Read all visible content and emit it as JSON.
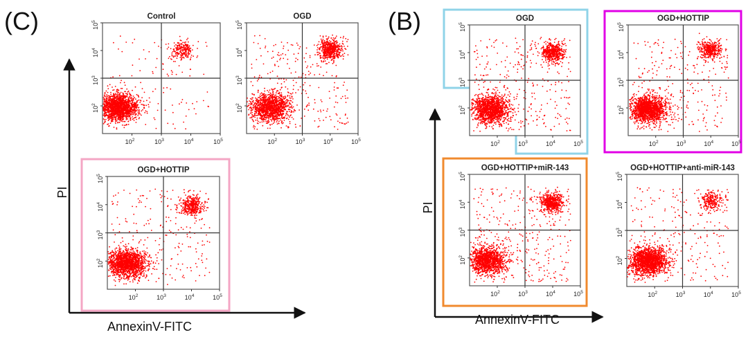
{
  "panels": [
    {
      "letter": "(C)",
      "xlabel": "AnnexinV-FITC",
      "ylabel": "PI"
    },
    {
      "letter": "(B)",
      "xlabel": "AnnexinV-FITC",
      "ylabel": "PI"
    }
  ],
  "colors": {
    "dots": "#ff0000",
    "highlight_pink": "#f4a6c4",
    "highlight_cyan": "#8fd3e8",
    "highlight_magenta": "#e100e6",
    "highlight_orange": "#f08a2e"
  },
  "chart_data": [
    {
      "type": "scatter",
      "panel": "(C)",
      "title": "Control",
      "xlabel": "AnnexinV-FITC",
      "ylabel": "PI",
      "axis_scale": "log",
      "xlim": [
        10,
        100000
      ],
      "ylim": [
        10,
        100000
      ],
      "x_ticks": [
        "10^2",
        "10^3",
        "10^4",
        "10^5"
      ],
      "y_ticks": [
        "10^2",
        "10^3",
        "10^4",
        "10^5"
      ],
      "quadrant_gates": {
        "x": 1000,
        "y": 1000
      },
      "populations": [
        {
          "region": "live",
          "log_center": [
            1.55,
            1.95
          ],
          "weight": 0.85
        },
        {
          "region": "late-apoptotic",
          "log_center": [
            3.7,
            4.0
          ],
          "weight": 0.1
        },
        {
          "region": "scattered",
          "weight": 0.05
        }
      ]
    },
    {
      "type": "scatter",
      "panel": "(C)",
      "title": "OGD",
      "xlabel": "AnnexinV-FITC",
      "ylabel": "PI",
      "axis_scale": "log",
      "xlim": [
        10,
        100000
      ],
      "ylim": [
        10,
        100000
      ],
      "x_ticks": [
        "10^2",
        "10^3",
        "10^4",
        "10^5"
      ],
      "y_ticks": [
        "10^2",
        "10^3",
        "10^4",
        "10^5"
      ],
      "quadrant_gates": {
        "x": 1000,
        "y": 1000
      },
      "populations": [
        {
          "region": "live",
          "log_center": [
            1.85,
            1.95
          ],
          "weight": 0.62
        },
        {
          "region": "late-apoptotic",
          "log_center": [
            4.0,
            4.05
          ],
          "weight": 0.25
        },
        {
          "region": "scattered",
          "weight": 0.13
        }
      ]
    },
    {
      "type": "scatter",
      "panel": "(C)",
      "title": "OGD+HOTTIP",
      "xlabel": "AnnexinV-FITC",
      "ylabel": "PI",
      "axis_scale": "log",
      "xlim": [
        10,
        100000
      ],
      "ylim": [
        10,
        100000
      ],
      "x_ticks": [
        "10^2",
        "10^3",
        "10^4",
        "10^5"
      ],
      "y_ticks": [
        "10^2",
        "10^3",
        "10^4",
        "10^5"
      ],
      "quadrant_gates": {
        "x": 1000,
        "y": 1000
      },
      "populations": [
        {
          "region": "live",
          "log_center": [
            1.7,
            1.9
          ],
          "weight": 0.72
        },
        {
          "region": "late-apoptotic",
          "log_center": [
            4.0,
            3.95
          ],
          "weight": 0.17
        },
        {
          "region": "scattered",
          "weight": 0.11
        }
      ]
    },
    {
      "type": "scatter",
      "panel": "(B)",
      "title": "OGD",
      "xlabel": "AnnexinV-FITC",
      "ylabel": "PI",
      "axis_scale": "log",
      "xlim": [
        10,
        100000
      ],
      "ylim": [
        10,
        100000
      ],
      "x_ticks": [
        "10^2",
        "10^3",
        "10^4",
        "10^5"
      ],
      "y_ticks": [
        "10^2",
        "10^3",
        "10^4",
        "10^5"
      ],
      "quadrant_gates": {
        "x": 1000,
        "y": 1000
      },
      "populations": [
        {
          "region": "live",
          "log_center": [
            1.75,
            1.95
          ],
          "weight": 0.62
        },
        {
          "region": "late-apoptotic",
          "log_center": [
            4.0,
            4.0
          ],
          "weight": 0.24
        },
        {
          "region": "scattered",
          "weight": 0.14
        }
      ]
    },
    {
      "type": "scatter",
      "panel": "(B)",
      "title": "OGD+HOTTIP",
      "xlabel": "AnnexinV-FITC",
      "ylabel": "PI",
      "axis_scale": "log",
      "xlim": [
        10,
        100000
      ],
      "ylim": [
        10,
        100000
      ],
      "x_ticks": [
        "10^2",
        "10^3",
        "10^4",
        "10^5"
      ],
      "y_ticks": [
        "10^2",
        "10^3",
        "10^4",
        "10^5"
      ],
      "quadrant_gates": {
        "x": 1000,
        "y": 1000
      },
      "populations": [
        {
          "region": "live",
          "log_center": [
            1.7,
            1.95
          ],
          "weight": 0.7
        },
        {
          "region": "late-apoptotic",
          "log_center": [
            4.0,
            4.1
          ],
          "weight": 0.18
        },
        {
          "region": "scattered",
          "weight": 0.12
        }
      ]
    },
    {
      "type": "scatter",
      "panel": "(B)",
      "title": "OGD+HOTTIP+miR-143",
      "xlabel": "AnnexinV-FITC",
      "ylabel": "PI",
      "axis_scale": "log",
      "xlim": [
        10,
        100000
      ],
      "ylim": [
        10,
        100000
      ],
      "x_ticks": [
        "10^2",
        "10^3",
        "10^4",
        "10^5"
      ],
      "y_ticks": [
        "10^2",
        "10^3",
        "10^4",
        "10^5"
      ],
      "quadrant_gates": {
        "x": 1000,
        "y": 1000
      },
      "populations": [
        {
          "region": "live",
          "log_center": [
            1.65,
            1.9
          ],
          "weight": 0.6
        },
        {
          "region": "late-apoptotic",
          "log_center": [
            3.95,
            4.0
          ],
          "weight": 0.25
        },
        {
          "region": "scattered",
          "weight": 0.15
        }
      ]
    },
    {
      "type": "scatter",
      "panel": "(B)",
      "title": "OGD+HOTTIP+anti-miR-143",
      "xlabel": "AnnexinV-FITC",
      "ylabel": "PI",
      "axis_scale": "log",
      "xlim": [
        10,
        100000
      ],
      "ylim": [
        10,
        100000
      ],
      "x_ticks": [
        "10^2",
        "10^3",
        "10^4",
        "10^5"
      ],
      "y_ticks": [
        "10^2",
        "10^3",
        "10^4",
        "10^5"
      ],
      "quadrant_gates": {
        "x": 1000,
        "y": 1000
      },
      "populations": [
        {
          "region": "live",
          "log_center": [
            1.75,
            1.9
          ],
          "weight": 0.78
        },
        {
          "region": "late-apoptotic",
          "log_center": [
            4.0,
            4.05
          ],
          "weight": 0.11
        },
        {
          "region": "scattered",
          "weight": 0.11
        }
      ]
    }
  ]
}
